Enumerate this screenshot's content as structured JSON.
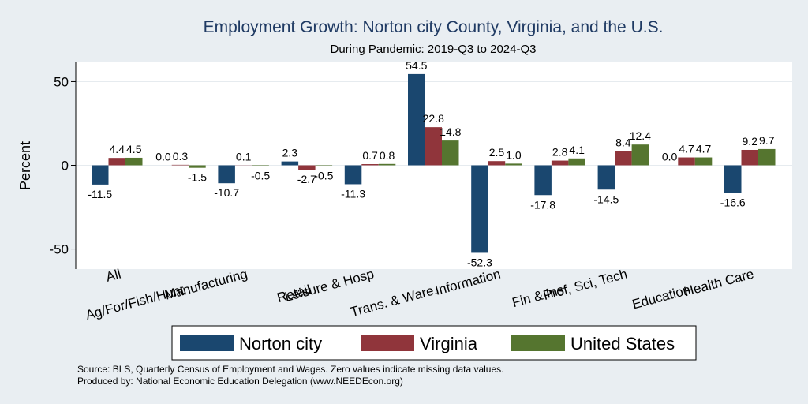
{
  "chart_data": {
    "type": "bar",
    "title": "Employment Growth: Norton city County, Virginia, and the U.S.",
    "subtitle": "During Pandemic: 2019-Q3 to 2024-Q3",
    "ylabel": "Percent",
    "xlabel": "",
    "ylim": [
      -62,
      62
    ],
    "yticks": [
      -50,
      0,
      50
    ],
    "categories": [
      "All",
      "Ag/For/Fish/Hunt",
      "Manufacturing",
      "Retail",
      "Leisure & Hosp",
      "Trans. & Ware.",
      "Information",
      "Fin & Ins",
      "Prof, Sci, Tech",
      "Education",
      "Health Care"
    ],
    "series": [
      {
        "name": "Norton city",
        "color": "#1a476f",
        "values": [
          -11.5,
          0.0,
          -10.7,
          2.3,
          -11.3,
          54.5,
          -52.3,
          -17.8,
          -14.5,
          0.0,
          -16.6
        ]
      },
      {
        "name": "Virginia",
        "color": "#90353b",
        "values": [
          4.4,
          0.3,
          0.1,
          -2.7,
          0.7,
          22.8,
          2.5,
          2.8,
          8.4,
          4.7,
          9.2
        ]
      },
      {
        "name": "United States",
        "color": "#55752f",
        "values": [
          4.5,
          -1.5,
          -0.5,
          -0.5,
          0.8,
          14.8,
          1.0,
          4.1,
          12.4,
          4.7,
          9.7
        ]
      }
    ],
    "grid": true,
    "legend_position": "bottom"
  },
  "footer": {
    "source": "Source: BLS, Quarterly Census of Employment and Wages. Zero values indicate missing data values.",
    "produced": "Produced by: National Economic Education Delegation (www.NEEDEcon.org)"
  }
}
